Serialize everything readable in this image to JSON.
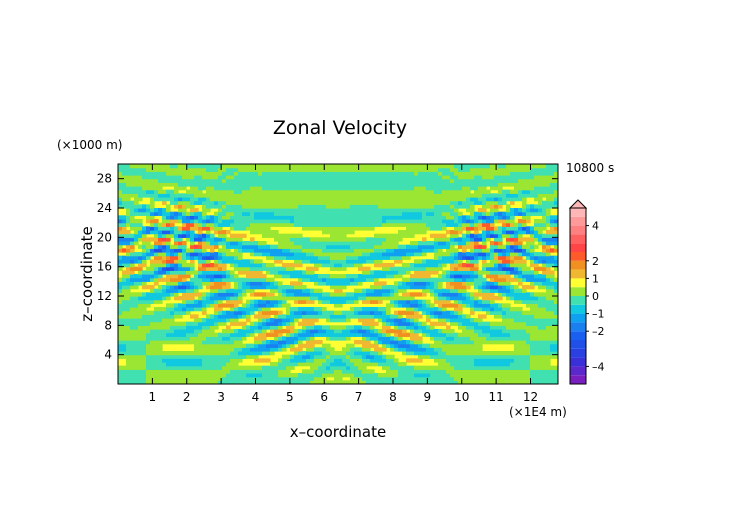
{
  "chart_data": {
    "type": "heatmap",
    "title": "Zonal Velocity",
    "xlabel": "x–coordinate",
    "ylabel": "z–coordinate",
    "x_unit": "(×1E4 m)",
    "y_unit": "(×1000 m)",
    "time_label": "10800 s",
    "xlim": [
      0,
      12.8
    ],
    "ylim": [
      0,
      30
    ],
    "x_ticks": [
      1,
      2,
      3,
      4,
      5,
      6,
      7,
      8,
      9,
      10,
      11,
      12
    ],
    "y_ticks": [
      4,
      8,
      12,
      16,
      20,
      24,
      28
    ],
    "colorbar": {
      "tick_labels": [
        "4",
        "2",
        "1",
        "0",
        "–1",
        "–2",
        "–4"
      ],
      "tick_values": [
        4,
        2,
        1,
        0,
        -1,
        -2,
        -4
      ],
      "levels": [
        -5,
        -4.5,
        -4,
        -3.5,
        -3,
        -2.5,
        -2,
        -1.5,
        -1,
        -0.5,
        0,
        0.5,
        1,
        1.5,
        2,
        2.5,
        3,
        3.5,
        4,
        4.5,
        5
      ],
      "colors": [
        "#7a1fbf",
        "#5a28cc",
        "#3a30d8",
        "#2a40e0",
        "#2050e8",
        "#1a60f0",
        "#1a80f0",
        "#10a0f0",
        "#10c8e0",
        "#40e0b0",
        "#9ae632",
        "#ffff33",
        "#f0b830",
        "#f09020",
        "#ff5a2a",
        "#ff4545",
        "#ff6060",
        "#ff8080",
        "#ff9a9a",
        "#ffb6b6"
      ]
    },
    "grid": false,
    "legend": "colorbar-right"
  }
}
